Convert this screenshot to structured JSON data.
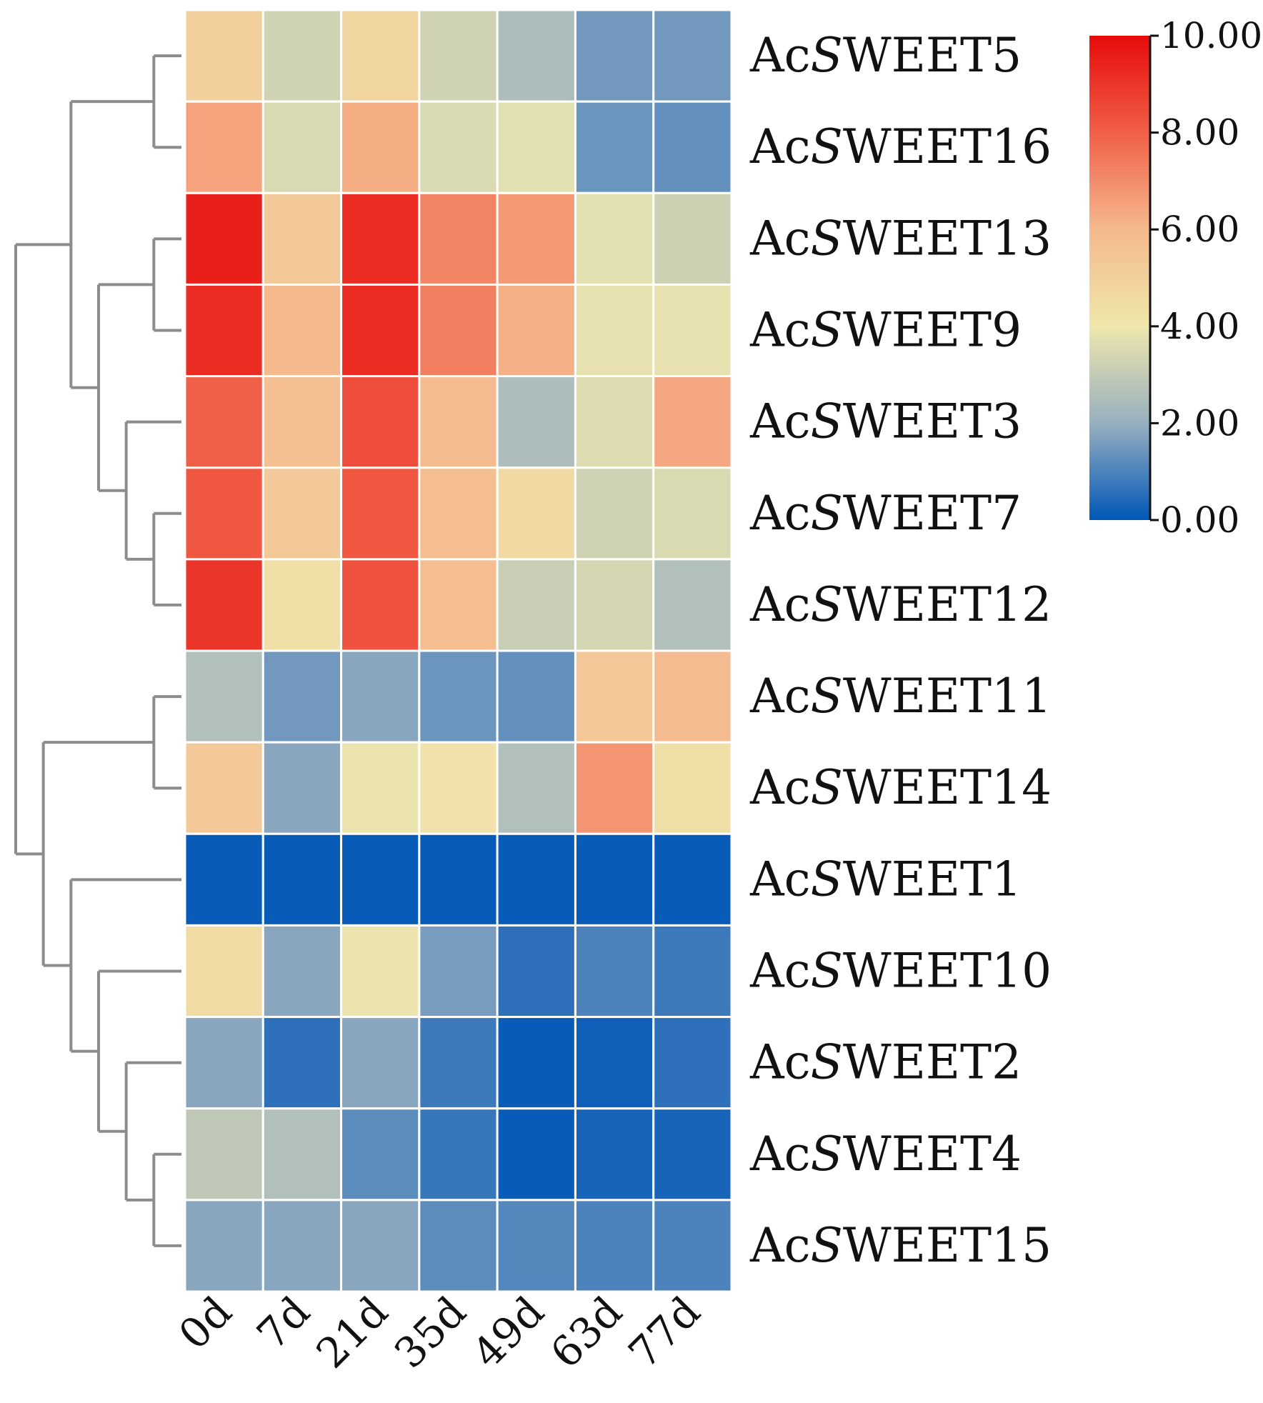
{
  "chart_data": {
    "type": "heatmap",
    "title": "",
    "xlabel": "",
    "ylabel": "",
    "columns": [
      "0d",
      "7d",
      "21d",
      "35d",
      "49d",
      "63d",
      "77d"
    ],
    "rows": [
      {
        "prefix": "Ac",
        "italic": "S",
        "suffix": "WEET5",
        "values": [
          5.0,
          3.3,
          4.8,
          3.3,
          2.5,
          1.5,
          1.5
        ]
      },
      {
        "prefix": "Ac",
        "italic": "S",
        "suffix": "WEET16",
        "values": [
          6.5,
          3.5,
          6.3,
          3.5,
          3.7,
          1.4,
          1.3
        ]
      },
      {
        "prefix": "Ac",
        "italic": "S",
        "suffix": "WEET13",
        "values": [
          9.5,
          5.3,
          9.2,
          7.2,
          6.7,
          3.7,
          3.2
        ]
      },
      {
        "prefix": "Ac",
        "italic": "S",
        "suffix": "WEET9",
        "values": [
          9.2,
          6.0,
          9.2,
          7.3,
          6.2,
          3.8,
          3.8
        ]
      },
      {
        "prefix": "Ac",
        "italic": "S",
        "suffix": "WEET3",
        "values": [
          8.0,
          5.7,
          8.4,
          5.9,
          2.5,
          3.6,
          6.4
        ]
      },
      {
        "prefix": "Ac",
        "italic": "S",
        "suffix": "WEET7",
        "values": [
          8.2,
          5.3,
          8.2,
          5.8,
          4.6,
          3.3,
          3.5
        ]
      },
      {
        "prefix": "Ac",
        "italic": "S",
        "suffix": "WEET12",
        "values": [
          9.0,
          4.3,
          8.3,
          5.8,
          3.1,
          3.4,
          2.6
        ]
      },
      {
        "prefix": "Ac",
        "italic": "S",
        "suffix": "WEET11",
        "values": [
          2.6,
          1.5,
          1.8,
          1.4,
          1.3,
          5.4,
          5.9
        ]
      },
      {
        "prefix": "Ac",
        "italic": "S",
        "suffix": "WEET14",
        "values": [
          5.3,
          1.8,
          3.9,
          4.2,
          2.6,
          6.8,
          4.4
        ]
      },
      {
        "prefix": "Ac",
        "italic": "S",
        "suffix": "WEET1",
        "values": [
          0.1,
          0.1,
          0.1,
          0.1,
          0.1,
          0.1,
          0.1
        ]
      },
      {
        "prefix": "Ac",
        "italic": "S",
        "suffix": "WEET10",
        "values": [
          4.5,
          1.8,
          3.9,
          1.6,
          0.6,
          1.0,
          0.8
        ]
      },
      {
        "prefix": "Ac",
        "italic": "S",
        "suffix": "WEET2",
        "values": [
          1.8,
          0.6,
          1.8,
          0.8,
          0.1,
          0.2,
          0.6
        ]
      },
      {
        "prefix": "Ac",
        "italic": "S",
        "suffix": "WEET4",
        "values": [
          2.9,
          2.6,
          1.2,
          0.7,
          0.1,
          0.3,
          0.3
        ]
      },
      {
        "prefix": "Ac",
        "italic": "S",
        "suffix": "WEET15",
        "values": [
          1.8,
          1.8,
          1.8,
          1.2,
          1.1,
          1.0,
          1.0
        ]
      }
    ],
    "colorbar": {
      "min": 0,
      "max": 10,
      "ticks": [
        "0.00",
        "2.00",
        "4.00",
        "6.00",
        "8.00",
        "10.00"
      ],
      "colors": [
        "#0157b8",
        "#97afbf",
        "#efe7ad",
        "#f5b98e",
        "#f05f47",
        "#e70b0b"
      ]
    },
    "dendrogram": {
      "row_order_tree": "(((AcSWEET5,AcSWEET16),((AcSWEET13,AcSWEET9),(AcSWEET3,(AcSWEET7,AcSWEET12)))),((AcSWEET11,AcSWEET14),(AcSWEET1,(AcSWEET10,(AcSWEET2,(AcSWEET4,AcSWEET15))))))"
    }
  }
}
